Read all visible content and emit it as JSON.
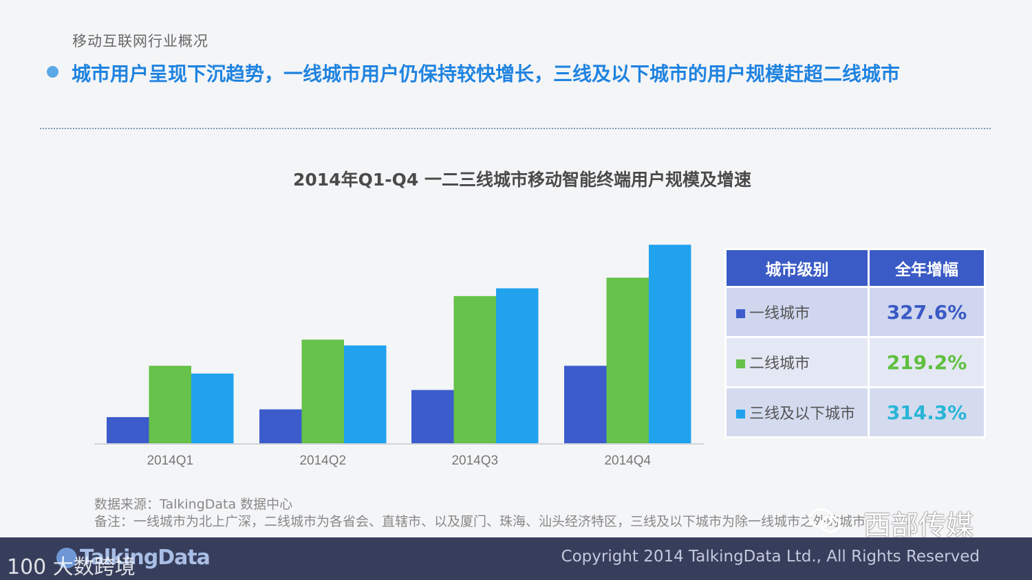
{
  "header": {
    "section_label": "移动互联网行业概况",
    "headline": "城市用户呈现下沉趋势，一线城市用户仍保持较快增长，三线及以下城市的用户规模赶超二线城市"
  },
  "chart_data": {
    "type": "bar",
    "title": "2014年Q1-Q4 一二三线城市移动智能终端用户规模及增速",
    "categories": [
      "2014Q1",
      "2014Q2",
      "2014Q3",
      "2014Q4"
    ],
    "series": [
      {
        "name": "一线城市",
        "color": "#3d5ccc",
        "values": [
          13.5,
          17.5,
          27.5,
          40
        ]
      },
      {
        "name": "二线城市",
        "color": "#66c24a",
        "values": [
          40,
          53.5,
          76,
          85.5
        ]
      },
      {
        "name": "三线及以下城市",
        "color": "#21a2ef",
        "values": [
          36,
          50.5,
          80,
          102.5
        ]
      }
    ],
    "ylim": [
      0,
      110
    ],
    "xlabel": "",
    "ylabel": "",
    "grid": false,
    "y_axis_labels_shown": false
  },
  "table": {
    "headers": [
      "城市级别",
      "全年增幅"
    ],
    "rows": [
      {
        "level": "一线城市",
        "growth": "327.6%",
        "color": "#3d5ccc"
      },
      {
        "level": "二线城市",
        "growth": "219.2%",
        "color": "#66c24a"
      },
      {
        "level": "三线及以下城市",
        "growth": "314.3%",
        "color": "#21a2ef"
      }
    ],
    "value_colors": [
      "#3a5ac5",
      "#5fbf3f",
      "#29b5d6"
    ]
  },
  "footnotes": {
    "source": "数据来源：TalkingData 数据中心",
    "note": "备注：一线城市为北上广深，二线城市为各省会、直辖市、以及厦门、珠海、汕头经济特区，三线及以下城市为除一线城市之外的城市"
  },
  "footer": {
    "brand": "TalkingData",
    "copyright": "Copyright 2014 TalkingData Ltd., All Rights Reserved"
  },
  "watermarks": {
    "left": "100 大数跨境",
    "right": "西部传媒"
  }
}
